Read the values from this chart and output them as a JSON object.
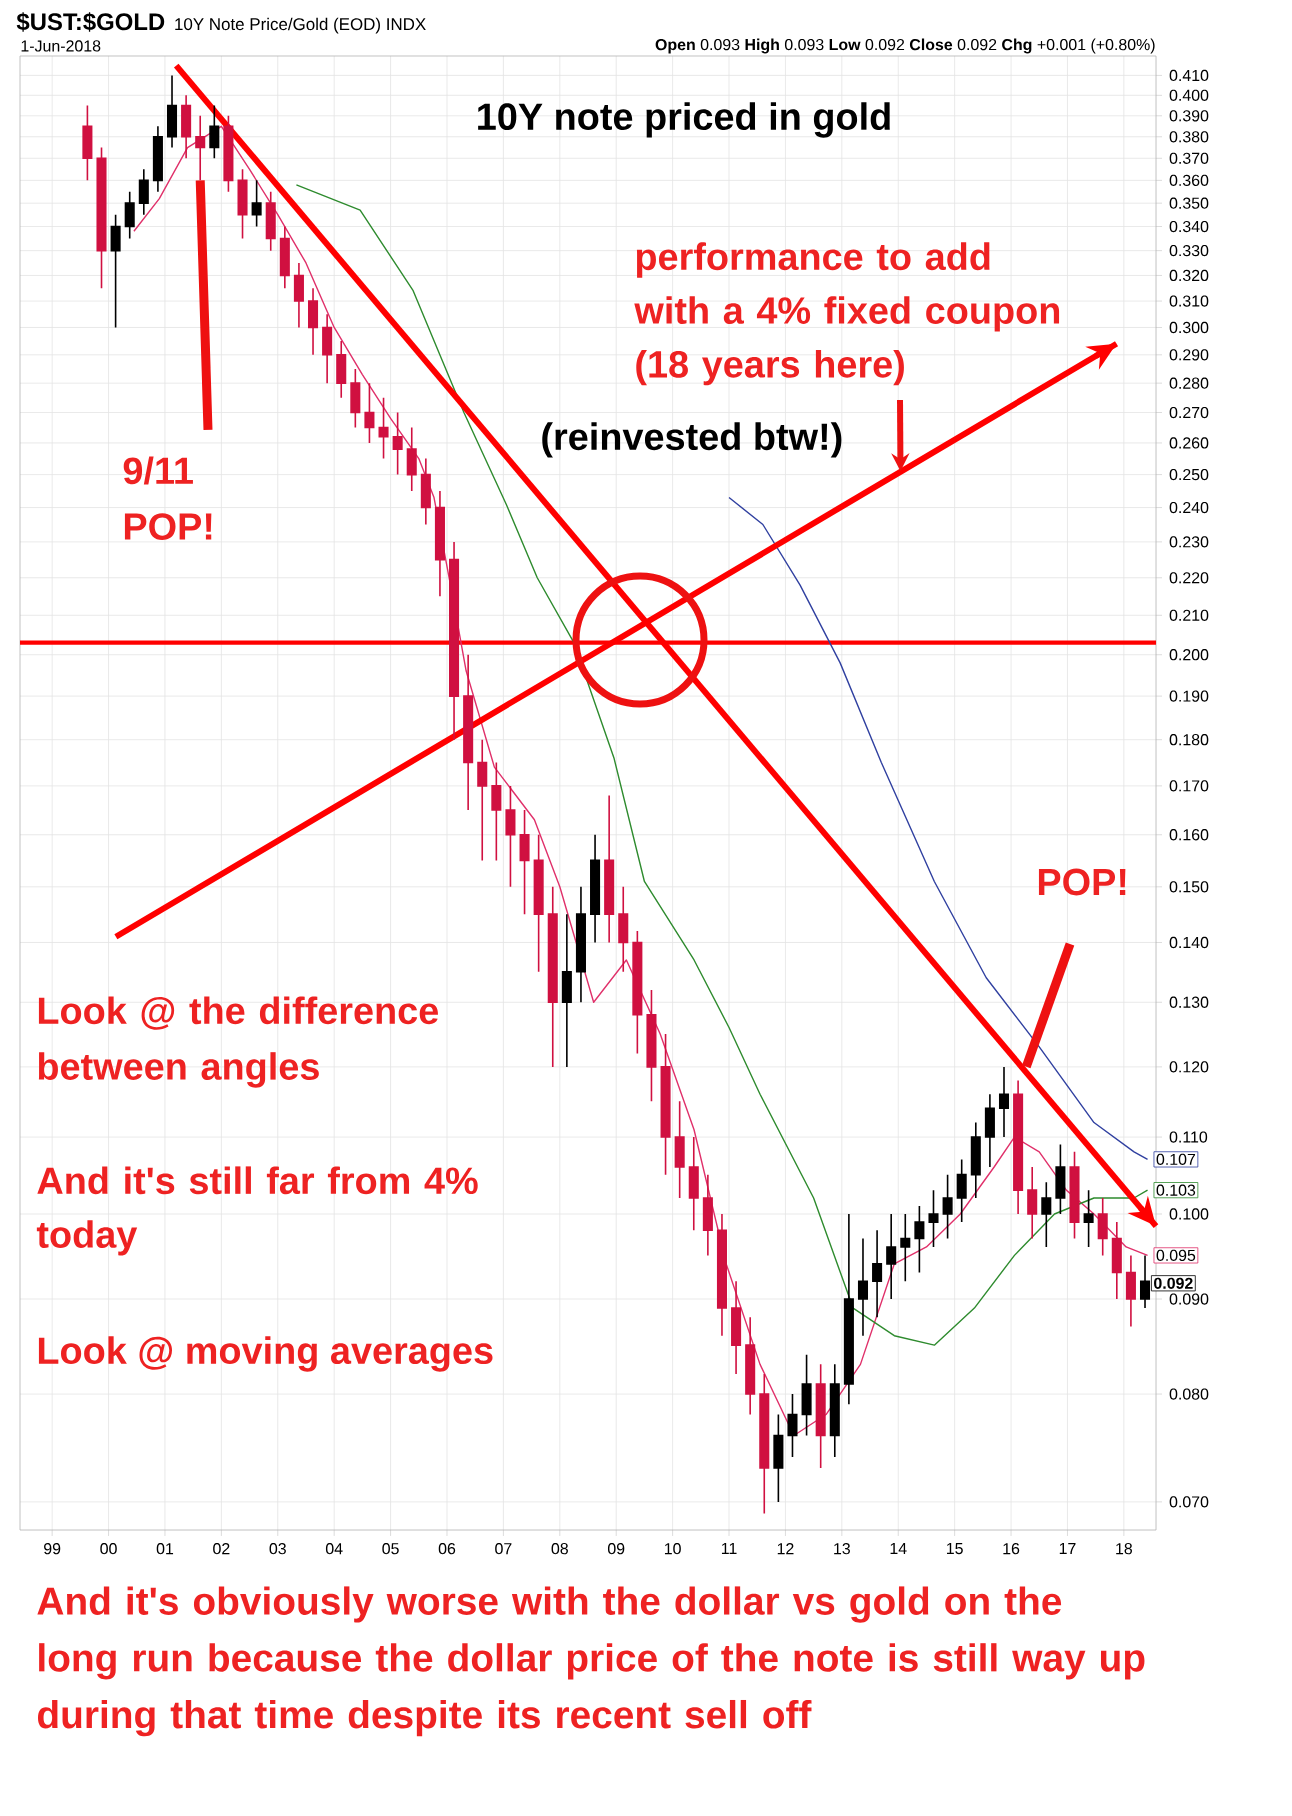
{
  "chart_data": {
    "type": "candlestick",
    "title": "$UST:$GOLD",
    "subtitle": "10Y Note Price/Gold (EOD) INDX",
    "annotations": [
      "1-Jun-2018",
      "**Open** 0.093 **High** 0.093 **Low** 0.092 **Close** 0.092 **Chg** +0.001 (+0.80%)",
      "10Y note priced in gold",
      {
        "text": "performance to add with a 4% fixed coupon (18 years here)",
        "x": 2014.04,
        "y": 0.251
      },
      "(reinvested btw!)",
      {
        "text": "9/11 POP!",
        "x": 2001.625,
        "y": 0.36
      },
      {
        "text": "POP!",
        "x": 2016.27,
        "y": 0.12
      },
      "Look @ the difference between angles",
      "And it's still far from 4% today",
      "Look @ moving averages",
      "And it's obviously worse with the dollar vs gold on the long run because the dollar price of the note is still way up during that time despite its recent sell off",
      {
        "text": "0.092",
        "x": 2018.375,
        "y": 0.092
      }
    ],
    "xlim": [
      1998.43,
      2018.57
    ],
    "ylim": [
      0.0676,
      0.42
    ],
    "log": "y",
    "grid": true,
    "xticks": [
      {
        "value": 1999,
        "label": "99"
      },
      {
        "value": 2000,
        "label": "00"
      },
      {
        "value": 2001,
        "label": "01"
      },
      {
        "value": 2002,
        "label": "02"
      },
      {
        "value": 2003,
        "label": "03"
      },
      {
        "value": 2004,
        "label": "04"
      },
      {
        "value": 2005,
        "label": "05"
      },
      {
        "value": 2006,
        "label": "06"
      },
      {
        "value": 2007,
        "label": "07"
      },
      {
        "value": 2008,
        "label": "08"
      },
      {
        "value": 2009,
        "label": "09"
      },
      {
        "value": 2010,
        "label": "10"
      },
      {
        "value": 2011,
        "label": "11"
      },
      {
        "value": 2012,
        "label": "12"
      },
      {
        "value": 2013,
        "label": "13"
      },
      {
        "value": 2014,
        "label": "14"
      },
      {
        "value": 2015,
        "label": "15"
      },
      {
        "value": 2016,
        "label": "16"
      },
      {
        "value": 2017,
        "label": "17"
      },
      {
        "value": 2018,
        "label": "18"
      }
    ],
    "yticks": [
      {
        "value": 0.07,
        "label": "0.070"
      },
      {
        "value": 0.08,
        "label": "0.080"
      },
      {
        "value": 0.09,
        "label": "0.090"
      },
      {
        "value": 0.1,
        "label": "0.100"
      },
      {
        "value": 0.11,
        "label": "0.110"
      },
      {
        "value": 0.12,
        "label": "0.120"
      },
      {
        "value": 0.13,
        "label": "0.130"
      },
      {
        "value": 0.14,
        "label": "0.140"
      },
      {
        "value": 0.15,
        "label": "0.150"
      },
      {
        "value": 0.16,
        "label": "0.160"
      },
      {
        "value": 0.17,
        "label": "0.170"
      },
      {
        "value": 0.18,
        "label": "0.180"
      },
      {
        "value": 0.19,
        "label": "0.190"
      },
      {
        "value": 0.2,
        "label": "0.200"
      },
      {
        "value": 0.21,
        "label": "0.210"
      },
      {
        "value": 0.22,
        "label": "0.220"
      },
      {
        "value": 0.23,
        "label": "0.230"
      },
      {
        "value": 0.24,
        "label": "0.240"
      },
      {
        "value": 0.25,
        "label": "0.250"
      },
      {
        "value": 0.26,
        "label": "0.260"
      },
      {
        "value": 0.27,
        "label": "0.270"
      },
      {
        "value": 0.28,
        "label": "0.280"
      },
      {
        "value": 0.29,
        "label": "0.290"
      },
      {
        "value": 0.3,
        "label": "0.300"
      },
      {
        "value": 0.31,
        "label": "0.310"
      },
      {
        "value": 0.32,
        "label": "0.320"
      },
      {
        "value": 0.33,
        "label": "0.330"
      },
      {
        "value": 0.34,
        "label": "0.340"
      },
      {
        "value": 0.35,
        "label": "0.350"
      },
      {
        "value": 0.36,
        "label": "0.360"
      },
      {
        "value": 0.37,
        "label": "0.370"
      },
      {
        "value": 0.38,
        "label": "0.380"
      },
      {
        "value": 0.39,
        "label": "0.390"
      },
      {
        "value": 0.4,
        "label": "0.400"
      },
      {
        "value": 0.41,
        "label": "0.410"
      }
    ],
    "ref_lines": [
      {
        "axis": "y",
        "value": 0.203,
        "color": "#ff0000"
      }
    ],
    "series": [
      {
        "type": "line",
        "color": "#e0306a",
        "x": [
          2000.45,
          2000.9,
          2001.4,
          2002.0,
          2002.5,
          2003.0,
          2003.5,
          2004.0,
          2004.5,
          2005.0,
          2005.5,
          2005.77,
          2006.1,
          2006.34,
          2006.84,
          2007.55,
          2008.0,
          2008.6,
          2009.18,
          2009.78,
          2010.38,
          2010.95,
          2011.55,
          2012.15,
          2012.72,
          2013.33,
          2013.93,
          2014.5,
          2015.1,
          2015.7,
          2016.06,
          2016.5,
          2016.98,
          2017.47,
          2018.04,
          2018.42
        ],
        "values": [
          0.338,
          0.352,
          0.375,
          0.385,
          0.365,
          0.345,
          0.325,
          0.3,
          0.283,
          0.268,
          0.255,
          0.243,
          0.215,
          0.196,
          0.174,
          0.163,
          0.15,
          0.13,
          0.137,
          0.125,
          0.111,
          0.094,
          0.083,
          0.076,
          0.078,
          0.083,
          0.094,
          0.096,
          0.1,
          0.106,
          0.11,
          0.108,
          0.103,
          0.1,
          0.096,
          0.095
        ],
        "value_labels": [
          null,
          null,
          null,
          null,
          null,
          null,
          null,
          null,
          null,
          null,
          null,
          null,
          null,
          null,
          null,
          null,
          null,
          null,
          null,
          null,
          null,
          null,
          null,
          null,
          null,
          null,
          null,
          null,
          null,
          null,
          null,
          null,
          null,
          null,
          null,
          "0.095"
        ]
      },
      {
        "type": "line",
        "color": "#2e8b2e",
        "x": [
          2003.33,
          2004.46,
          2005.4,
          2006.3,
          2007.05,
          2007.6,
          2008.25,
          2008.96,
          2009.5,
          2010.38,
          2011.0,
          2011.55,
          2012.5,
          2013.2,
          2013.93,
          2014.64,
          2015.35,
          2016.06,
          2016.77,
          2017.47,
          2018.18,
          2018.42
        ],
        "values": [
          0.358,
          0.347,
          0.314,
          0.27,
          0.241,
          0.22,
          0.203,
          0.176,
          0.151,
          0.137,
          0.126,
          0.116,
          0.102,
          0.089,
          0.086,
          0.085,
          0.089,
          0.095,
          0.1,
          0.102,
          0.102,
          0.103
        ],
        "value_labels": [
          null,
          null,
          null,
          null,
          null,
          null,
          null,
          null,
          null,
          null,
          null,
          null,
          null,
          null,
          null,
          null,
          null,
          null,
          null,
          null,
          null,
          "0.103"
        ]
      },
      {
        "type": "line",
        "color": "#3040a0",
        "x": [
          2011.0,
          2011.6,
          2012.26,
          2012.97,
          2013.7,
          2014.64,
          2015.56,
          2016.5,
          2017.47,
          2018.18,
          2018.42
        ],
        "values": [
          0.243,
          0.235,
          0.218,
          0.198,
          0.175,
          0.151,
          0.134,
          0.123,
          0.112,
          0.108,
          0.107
        ],
        "value_labels": [
          null,
          null,
          null,
          null,
          null,
          null,
          null,
          null,
          null,
          null,
          "0.107"
        ]
      },
      {
        "x": [
          1999.625,
          1999.875,
          2000.125,
          2000.375,
          2000.625,
          2000.875,
          2001.125,
          2001.375,
          2001.625,
          2001.875,
          2002.125,
          2002.375,
          2002.625,
          2002.875,
          2003.125,
          2003.375,
          2003.625,
          2003.875,
          2004.125,
          2004.375,
          2004.625,
          2004.875,
          2005.125,
          2005.375,
          2005.625,
          2005.875,
          2006.125,
          2006.375,
          2006.625,
          2006.875,
          2007.125,
          2007.375,
          2007.625,
          2007.875,
          2008.125,
          2008.375,
          2008.625,
          2008.875,
          2009.125,
          2009.375,
          2009.625,
          2009.875,
          2010.125,
          2010.375,
          2010.625,
          2010.875,
          2011.125,
          2011.375,
          2011.625,
          2011.875,
          2012.125,
          2012.375,
          2012.625,
          2012.875,
          2013.125,
          2013.375,
          2013.625,
          2013.875,
          2014.125,
          2014.375,
          2014.625,
          2014.875,
          2015.125,
          2015.375,
          2015.625,
          2015.875,
          2016.125,
          2016.375,
          2016.625,
          2016.875,
          2017.125,
          2017.375,
          2017.625,
          2017.875,
          2018.125,
          2018.375
        ],
        "ohlc": [
          [
            0.385,
            0.395,
            0.36,
            0.37
          ],
          [
            0.37,
            0.375,
            0.315,
            0.33
          ],
          [
            0.33,
            0.345,
            0.3,
            0.34
          ],
          [
            0.34,
            0.355,
            0.335,
            0.35
          ],
          [
            0.35,
            0.365,
            0.345,
            0.36
          ],
          [
            0.36,
            0.385,
            0.355,
            0.38
          ],
          [
            0.38,
            0.41,
            0.375,
            0.395
          ],
          [
            0.395,
            0.4,
            0.37,
            0.38
          ],
          [
            0.38,
            0.39,
            0.36,
            0.375
          ],
          [
            0.375,
            0.395,
            0.37,
            0.385
          ],
          [
            0.385,
            0.39,
            0.355,
            0.36
          ],
          [
            0.36,
            0.365,
            0.335,
            0.345
          ],
          [
            0.345,
            0.36,
            0.34,
            0.35
          ],
          [
            0.35,
            0.355,
            0.33,
            0.335
          ],
          [
            0.335,
            0.34,
            0.315,
            0.32
          ],
          [
            0.32,
            0.325,
            0.3,
            0.31
          ],
          [
            0.31,
            0.315,
            0.29,
            0.3
          ],
          [
            0.3,
            0.305,
            0.28,
            0.29
          ],
          [
            0.29,
            0.295,
            0.275,
            0.28
          ],
          [
            0.28,
            0.285,
            0.265,
            0.27
          ],
          [
            0.27,
            0.28,
            0.26,
            0.265
          ],
          [
            0.265,
            0.275,
            0.255,
            0.262
          ],
          [
            0.262,
            0.27,
            0.25,
            0.258
          ],
          [
            0.258,
            0.265,
            0.245,
            0.25
          ],
          [
            0.25,
            0.255,
            0.235,
            0.24
          ],
          [
            0.24,
            0.245,
            0.215,
            0.225
          ],
          [
            0.225,
            0.23,
            0.18,
            0.19
          ],
          [
            0.19,
            0.2,
            0.165,
            0.175
          ],
          [
            0.175,
            0.18,
            0.155,
            0.17
          ],
          [
            0.17,
            0.175,
            0.155,
            0.165
          ],
          [
            0.165,
            0.17,
            0.15,
            0.16
          ],
          [
            0.16,
            0.165,
            0.145,
            0.155
          ],
          [
            0.155,
            0.16,
            0.135,
            0.145
          ],
          [
            0.145,
            0.15,
            0.12,
            0.13
          ],
          [
            0.13,
            0.145,
            0.12,
            0.135
          ],
          [
            0.135,
            0.15,
            0.13,
            0.145
          ],
          [
            0.145,
            0.16,
            0.14,
            0.155
          ],
          [
            0.155,
            0.168,
            0.14,
            0.145
          ],
          [
            0.145,
            0.15,
            0.135,
            0.14
          ],
          [
            0.14,
            0.142,
            0.122,
            0.128
          ],
          [
            0.128,
            0.132,
            0.115,
            0.12
          ],
          [
            0.12,
            0.125,
            0.105,
            0.11
          ],
          [
            0.11,
            0.115,
            0.102,
            0.106
          ],
          [
            0.106,
            0.11,
            0.098,
            0.102
          ],
          [
            0.102,
            0.105,
            0.095,
            0.098
          ],
          [
            0.098,
            0.1,
            0.086,
            0.089
          ],
          [
            0.089,
            0.092,
            0.082,
            0.085
          ],
          [
            0.085,
            0.088,
            0.078,
            0.08
          ],
          [
            0.08,
            0.082,
            0.069,
            0.073
          ],
          [
            0.073,
            0.078,
            0.07,
            0.076
          ],
          [
            0.076,
            0.08,
            0.074,
            0.078
          ],
          [
            0.078,
            0.084,
            0.076,
            0.081
          ],
          [
            0.081,
            0.083,
            0.073,
            0.076
          ],
          [
            0.076,
            0.083,
            0.074,
            0.081
          ],
          [
            0.081,
            0.1,
            0.079,
            0.09
          ],
          [
            0.09,
            0.097,
            0.086,
            0.092
          ],
          [
            0.092,
            0.098,
            0.088,
            0.094
          ],
          [
            0.094,
            0.1,
            0.09,
            0.096
          ],
          [
            0.096,
            0.1,
            0.092,
            0.097
          ],
          [
            0.097,
            0.101,
            0.093,
            0.099
          ],
          [
            0.099,
            0.103,
            0.096,
            0.1
          ],
          [
            0.1,
            0.105,
            0.097,
            0.102
          ],
          [
            0.102,
            0.107,
            0.099,
            0.105
          ],
          [
            0.105,
            0.112,
            0.102,
            0.11
          ],
          [
            0.11,
            0.116,
            0.106,
            0.114
          ],
          [
            0.114,
            0.12,
            0.11,
            0.116
          ],
          [
            0.116,
            0.118,
            0.1,
            0.103
          ],
          [
            0.103,
            0.106,
            0.097,
            0.1
          ],
          [
            0.1,
            0.104,
            0.096,
            0.102
          ],
          [
            0.102,
            0.109,
            0.1,
            0.106
          ],
          [
            0.106,
            0.108,
            0.097,
            0.099
          ],
          [
            0.099,
            0.103,
            0.096,
            0.1
          ],
          [
            0.1,
            0.102,
            0.095,
            0.097
          ],
          [
            0.097,
            0.099,
            0.09,
            0.093
          ],
          [
            0.093,
            0.095,
            0.087,
            0.09
          ],
          [
            0.09,
            0.095,
            0.089,
            0.092
          ]
        ],
        "colors": [
          "#d01040",
          "#d01040",
          "#000000",
          "#000000",
          "#000000",
          "#000000",
          "#000000",
          "#d01040",
          "#d01040",
          "#000000",
          "#d01040",
          "#d01040",
          "#000000",
          "#d01040",
          "#d01040",
          "#d01040",
          "#d01040",
          "#d01040",
          "#d01040",
          "#d01040",
          "#d01040",
          "#d01040",
          "#d01040",
          "#d01040",
          "#d01040",
          "#d01040",
          "#d01040",
          "#d01040",
          "#d01040",
          "#d01040",
          "#d01040",
          "#d01040",
          "#d01040",
          "#d01040",
          "#000000",
          "#000000",
          "#000000",
          "#d01040",
          "#d01040",
          "#d01040",
          "#d01040",
          "#d01040",
          "#d01040",
          "#d01040",
          "#d01040",
          "#d01040",
          "#d01040",
          "#d01040",
          "#d01040",
          "#000000",
          "#000000",
          "#000000",
          "#d01040",
          "#000000",
          "#000000",
          "#000000",
          "#000000",
          "#000000",
          "#000000",
          "#000000",
          "#000000",
          "#000000",
          "#000000",
          "#000000",
          "#000000",
          "#000000",
          "#d01040",
          "#d01040",
          "#000000",
          "#000000",
          "#d01040",
          "#000000",
          "#d01040",
          "#d01040",
          "#d01040",
          "#000000"
        ]
      },
      {
        "type": "line",
        "color": "#ff0000",
        "x": [
          2001.2,
          2018.57
        ],
        "values": [
          0.415,
          0.0985
        ]
      },
      {
        "type": "line",
        "color": "#ff0000",
        "x": [
          2000.13,
          2017.87
        ],
        "values": [
          0.141,
          0.294
        ]
      }
    ]
  }
}
